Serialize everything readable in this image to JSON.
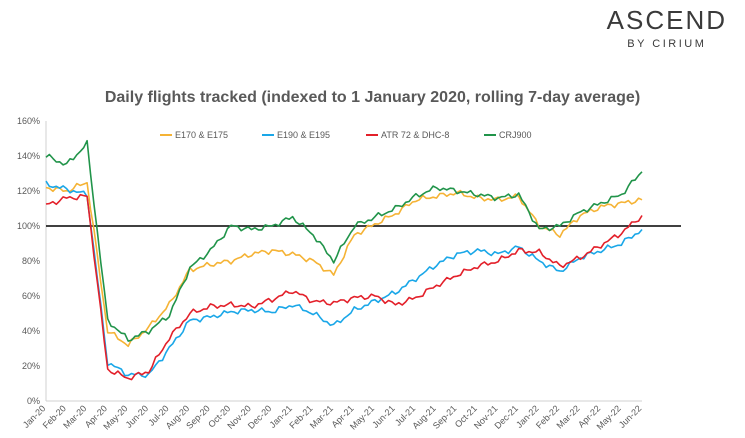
{
  "brand": {
    "name": "ASCEND",
    "tagline": "BY CIRIUM"
  },
  "chart_data": {
    "type": "line",
    "title": "Daily flights tracked (indexed to 1 January 2020, rolling 7-day average)",
    "xlabel": "",
    "ylabel": "",
    "ylim": [
      0,
      160
    ],
    "yticks": [
      "0%",
      "20%",
      "40%",
      "60%",
      "80%",
      "100%",
      "120%",
      "140%",
      "160%"
    ],
    "reference_line": 100,
    "grid": false,
    "legend_position": "top",
    "categories": [
      "Jan-20",
      "Feb-20",
      "Mar-20",
      "Apr-20",
      "May-20",
      "Jun-20",
      "Jul-20",
      "Aug-20",
      "Sep-20",
      "Oct-20",
      "Nov-20",
      "Dec-20",
      "Jan-21",
      "Feb-21",
      "Mar-21",
      "Apr-21",
      "May-21",
      "Jun-21",
      "Jul-21",
      "Aug-21",
      "Sep-21",
      "Oct-21",
      "Nov-21",
      "Dec-21",
      "Jan-22",
      "Feb-22",
      "Mar-22",
      "Apr-22",
      "May-22",
      "Jun-22"
    ],
    "series": [
      {
        "name": "E170 & E175",
        "color": "#F5B335",
        "values": [
          122,
          120,
          125,
          40,
          32,
          42,
          55,
          75,
          78,
          80,
          84,
          86,
          84,
          80,
          72,
          95,
          101,
          107,
          115,
          117,
          119,
          116,
          115,
          117,
          100,
          95,
          106,
          111,
          113,
          115
        ]
      },
      {
        "name": "E190 & E195",
        "color": "#1AA7E8",
        "values": [
          124,
          121,
          118,
          22,
          15,
          15,
          30,
          46,
          48,
          51,
          52,
          51,
          55,
          50,
          43,
          52,
          57,
          62,
          70,
          78,
          84,
          86,
          84,
          88,
          80,
          74,
          82,
          86,
          90,
          98
        ]
      },
      {
        "name": "ATR 72 & DHC-8",
        "color": "#E3202A",
        "values": [
          112,
          116,
          117,
          18,
          13,
          17,
          36,
          50,
          54,
          55,
          54,
          58,
          63,
          57,
          56,
          59,
          60,
          55,
          59,
          66,
          72,
          77,
          80,
          86,
          85,
          77,
          82,
          89,
          96,
          106
        ]
      },
      {
        "name": "CRJ900",
        "color": "#21944A",
        "values": [
          140,
          135,
          147,
          46,
          35,
          40,
          49,
          76,
          86,
          100,
          98,
          100,
          105,
          95,
          80,
          100,
          105,
          110,
          117,
          122,
          120,
          118,
          116,
          118,
          98,
          100,
          108,
          113,
          118,
          131
        ]
      }
    ]
  }
}
